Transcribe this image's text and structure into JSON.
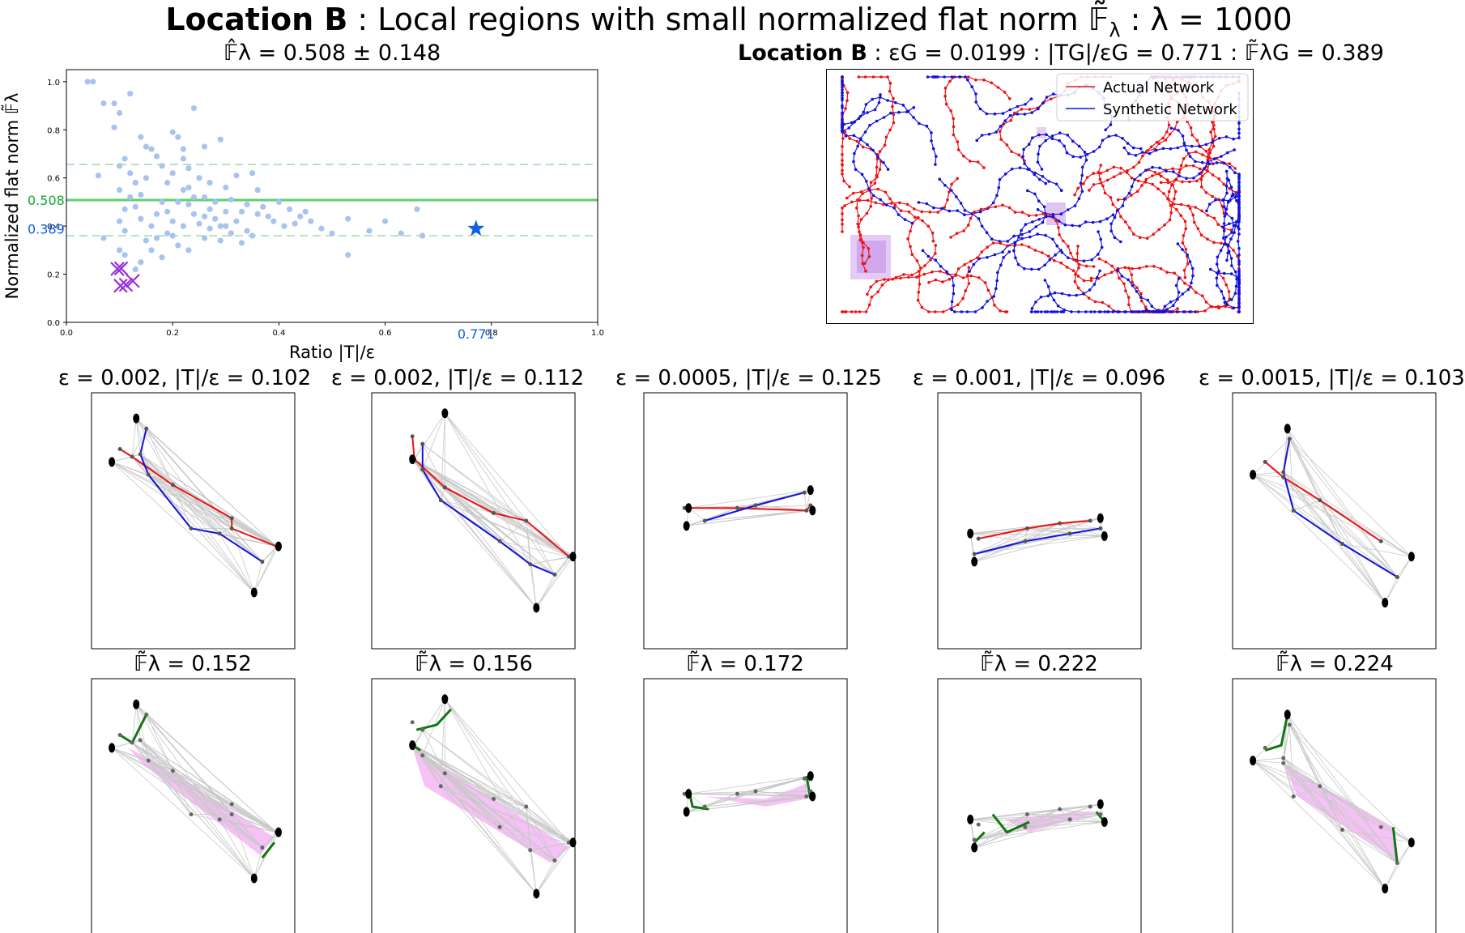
{
  "figure": {
    "title_bold": "Location B",
    "title_rest": " : Local regions with small normalized flat norm  𝔽̃",
    "title_sub": "λ",
    "title_tail": " : λ = 1000"
  },
  "scatter": {
    "title": "𝔽̂λ = 0.508 ± 0.148",
    "colors": {
      "points": "#a8c4ee",
      "selected": "#9b30d9",
      "star": "#1060e0",
      "mean_line": "#5fcf6f"
    },
    "chart_data": {
      "type": "scatter",
      "xlabel": "Ratio |T|/ε",
      "ylabel": "Normalized flat norm 𝔽̃λ",
      "xlim": [
        0.0,
        1.0
      ],
      "ylim": [
        0.0,
        1.05
      ],
      "xticks": [
        "0.0",
        "0.2",
        "0.4",
        "0.6",
        "0.8",
        "1.0"
      ],
      "yticks": [
        "0.0",
        "0.2",
        "0.4",
        "0.6",
        "0.8",
        "1.0"
      ],
      "mean": 0.508,
      "mean_label": "0.508",
      "std": 0.148,
      "global_point": {
        "x": 0.771,
        "y": 0.389,
        "x_label": "0.771",
        "y_label": "0.389"
      },
      "selected_points": [
        [
          0.102,
          0.152
        ],
        [
          0.112,
          0.156
        ],
        [
          0.125,
          0.172
        ],
        [
          0.096,
          0.222
        ],
        [
          0.103,
          0.224
        ]
      ],
      "points": [
        [
          0.04,
          1.0
        ],
        [
          0.05,
          1.0
        ],
        [
          0.07,
          0.91
        ],
        [
          0.09,
          0.91
        ],
        [
          0.12,
          0.95
        ],
        [
          0.1,
          0.87
        ],
        [
          0.09,
          0.81
        ],
        [
          0.06,
          0.61
        ],
        [
          0.07,
          0.35
        ],
        [
          0.1,
          0.65
        ],
        [
          0.11,
          0.68
        ],
        [
          0.12,
          0.62
        ],
        [
          0.13,
          0.58
        ],
        [
          0.14,
          0.53
        ],
        [
          0.1,
          0.55
        ],
        [
          0.13,
          0.48
        ],
        [
          0.1,
          0.42
        ],
        [
          0.11,
          0.38
        ],
        [
          0.1,
          0.3
        ],
        [
          0.11,
          0.28
        ],
        [
          0.13,
          0.22
        ],
        [
          0.14,
          0.25
        ],
        [
          0.15,
          0.6
        ],
        [
          0.16,
          0.72
        ],
        [
          0.17,
          0.69
        ],
        [
          0.18,
          0.65
        ],
        [
          0.18,
          0.5
        ],
        [
          0.17,
          0.45
        ],
        [
          0.16,
          0.4
        ],
        [
          0.17,
          0.35
        ],
        [
          0.19,
          0.58
        ],
        [
          0.2,
          0.62
        ],
        [
          0.21,
          0.77
        ],
        [
          0.22,
          0.68
        ],
        [
          0.22,
          0.55
        ],
        [
          0.23,
          0.49
        ],
        [
          0.24,
          0.45
        ],
        [
          0.2,
          0.42
        ],
        [
          0.19,
          0.37
        ],
        [
          0.21,
          0.32
        ],
        [
          0.23,
          0.3
        ],
        [
          0.25,
          0.6
        ],
        [
          0.26,
          0.52
        ],
        [
          0.27,
          0.47
        ],
        [
          0.28,
          0.43
        ],
        [
          0.29,
          0.4
        ],
        [
          0.3,
          0.56
        ],
        [
          0.31,
          0.51
        ],
        [
          0.33,
          0.46
        ],
        [
          0.32,
          0.42
        ],
        [
          0.34,
          0.38
        ],
        [
          0.36,
          0.55
        ],
        [
          0.37,
          0.48
        ],
        [
          0.38,
          0.44
        ],
        [
          0.4,
          0.5
        ],
        [
          0.42,
          0.47
        ],
        [
          0.44,
          0.44
        ],
        [
          0.46,
          0.42
        ],
        [
          0.48,
          0.39
        ],
        [
          0.5,
          0.37
        ],
        [
          0.53,
          0.43
        ],
        [
          0.57,
          0.38
        ],
        [
          0.6,
          0.42
        ],
        [
          0.63,
          0.37
        ],
        [
          0.66,
          0.47
        ],
        [
          0.67,
          0.36
        ],
        [
          0.53,
          0.28
        ],
        [
          0.24,
          0.89
        ],
        [
          0.29,
          0.76
        ],
        [
          0.26,
          0.73
        ],
        [
          0.32,
          0.61
        ],
        [
          0.35,
          0.62
        ],
        [
          0.14,
          0.77
        ],
        [
          0.15,
          0.73
        ],
        [
          0.2,
          0.79
        ],
        [
          0.22,
          0.72
        ],
        [
          0.23,
          0.64
        ],
        [
          0.27,
          0.58
        ],
        [
          0.28,
          0.5
        ],
        [
          0.3,
          0.46
        ],
        [
          0.25,
          0.41
        ],
        [
          0.26,
          0.35
        ],
        [
          0.29,
          0.34
        ],
        [
          0.33,
          0.33
        ],
        [
          0.35,
          0.36
        ],
        [
          0.39,
          0.42
        ],
        [
          0.41,
          0.4
        ],
        [
          0.45,
          0.46
        ],
        [
          0.14,
          0.43
        ],
        [
          0.15,
          0.34
        ],
        [
          0.16,
          0.3
        ],
        [
          0.18,
          0.27
        ],
        [
          0.2,
          0.36
        ],
        [
          0.22,
          0.4
        ],
        [
          0.24,
          0.52
        ],
        [
          0.26,
          0.44
        ],
        [
          0.12,
          0.52
        ],
        [
          0.13,
          0.58
        ],
        [
          0.11,
          0.47
        ],
        [
          0.19,
          0.46
        ],
        [
          0.21,
          0.5
        ],
        [
          0.23,
          0.56
        ],
        [
          0.27,
          0.39
        ],
        [
          0.3,
          0.4
        ],
        [
          0.31,
          0.37
        ],
        [
          0.34,
          0.49
        ],
        [
          0.36,
          0.45
        ],
        [
          0.43,
          0.41
        ]
      ]
    }
  },
  "network": {
    "title_bold": "Location B",
    "title_rest": " : εG = 0.0199 : |TG|/εG = 0.771 : 𝔽̃λG = 0.389",
    "legend": {
      "actual": "Actual Network",
      "synthetic": "Synthetic Network"
    },
    "colors": {
      "actual": "#ee1111",
      "synthetic": "#1111dd",
      "region": "#c28be8"
    }
  },
  "local_panels": [
    {
      "top_title": "ε = 0.002, |T|/ε = 0.102",
      "bottom_title": "𝔽̃λ = 0.152"
    },
    {
      "top_title": "ε = 0.002, |T|/ε = 0.112",
      "bottom_title": "𝔽̃λ = 0.156"
    },
    {
      "top_title": "ε = 0.0005, |T|/ε = 0.125",
      "bottom_title": "𝔽̃λ = 0.172"
    },
    {
      "top_title": "ε = 0.001, |T|/ε = 0.096",
      "bottom_title": "𝔽̃λ = 0.222"
    },
    {
      "top_title": "ε = 0.0015, |T|/ε = 0.103",
      "bottom_title": "𝔽̃λ = 0.224"
    }
  ],
  "local_colors": {
    "actual": "#ee1111",
    "synthetic": "#1111dd",
    "flatnorm_edge": "#117711",
    "patch": "#f4b6f4",
    "mesh": "#c8c8c8"
  }
}
